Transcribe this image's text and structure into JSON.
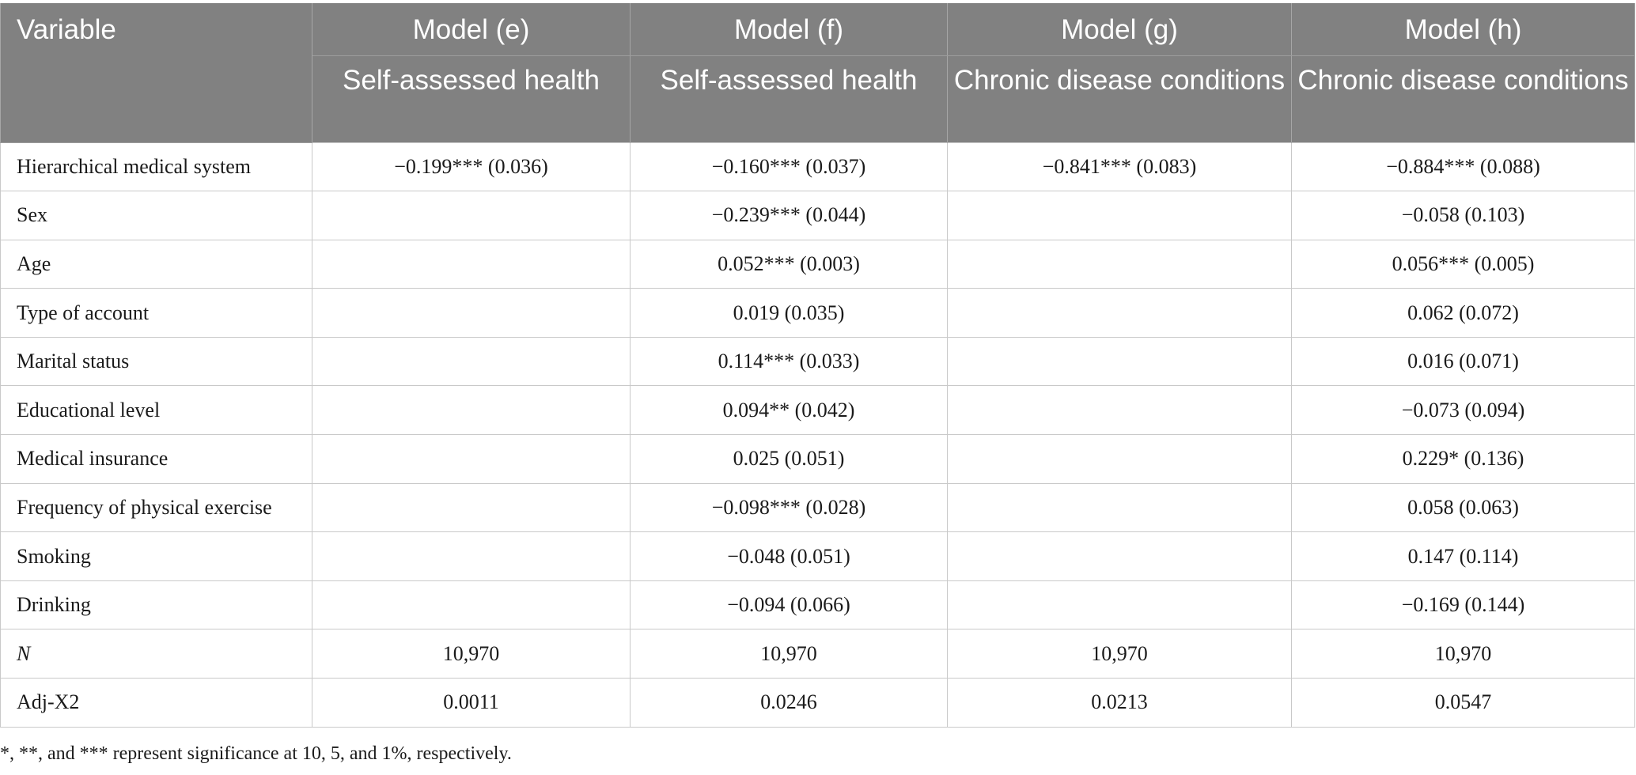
{
  "table": {
    "header": {
      "variable_label": "Variable",
      "models": [
        {
          "name": "Model (e)",
          "outcome": "Self-assessed health"
        },
        {
          "name": "Model (f)",
          "outcome": "Self-assessed health"
        },
        {
          "name": "Model (g)",
          "outcome": "Chronic disease conditions"
        },
        {
          "name": "Model (h)",
          "outcome": "Chronic disease conditions"
        }
      ]
    },
    "rows": [
      {
        "variable": "Hierarchical medical system",
        "values": [
          "−0.199*** (0.036)",
          "−0.160*** (0.037)",
          "−0.841*** (0.083)",
          "−0.884*** (0.088)"
        ]
      },
      {
        "variable": "Sex",
        "values": [
          "",
          "−0.239*** (0.044)",
          "",
          "−0.058 (0.103)"
        ]
      },
      {
        "variable": "Age",
        "values": [
          "",
          "0.052*** (0.003)",
          "",
          "0.056*** (0.005)"
        ]
      },
      {
        "variable": "Type of account",
        "values": [
          "",
          "0.019 (0.035)",
          "",
          "0.062 (0.072)"
        ]
      },
      {
        "variable": "Marital status",
        "values": [
          "",
          "0.114*** (0.033)",
          "",
          "0.016 (0.071)"
        ]
      },
      {
        "variable": "Educational level",
        "values": [
          "",
          "0.094** (0.042)",
          "",
          "−0.073 (0.094)"
        ]
      },
      {
        "variable": "Medical insurance",
        "values": [
          "",
          "0.025 (0.051)",
          "",
          "0.229* (0.136)"
        ]
      },
      {
        "variable": "Frequency of physical exercise",
        "values": [
          "",
          "−0.098*** (0.028)",
          "",
          "0.058 (0.063)"
        ]
      },
      {
        "variable": "Smoking",
        "values": [
          "",
          "−0.048 (0.051)",
          "",
          "0.147 (0.114)"
        ]
      },
      {
        "variable": "Drinking",
        "values": [
          "",
          "−0.094 (0.066)",
          "",
          "−0.169 (0.144)"
        ]
      },
      {
        "variable": "N",
        "values": [
          "10,970",
          "10,970",
          "10,970",
          "10,970"
        ]
      },
      {
        "variable": "Adj-X2",
        "values": [
          "0.0011",
          "0.0246",
          "0.0213",
          "0.0547"
        ]
      }
    ]
  },
  "note": "*, **, and *** represent significance at 10, 5, and 1%, respectively.",
  "colors": {
    "header_background": "#818181",
    "header_text": "#ffffff",
    "grid_line": "#c9c9c9"
  }
}
